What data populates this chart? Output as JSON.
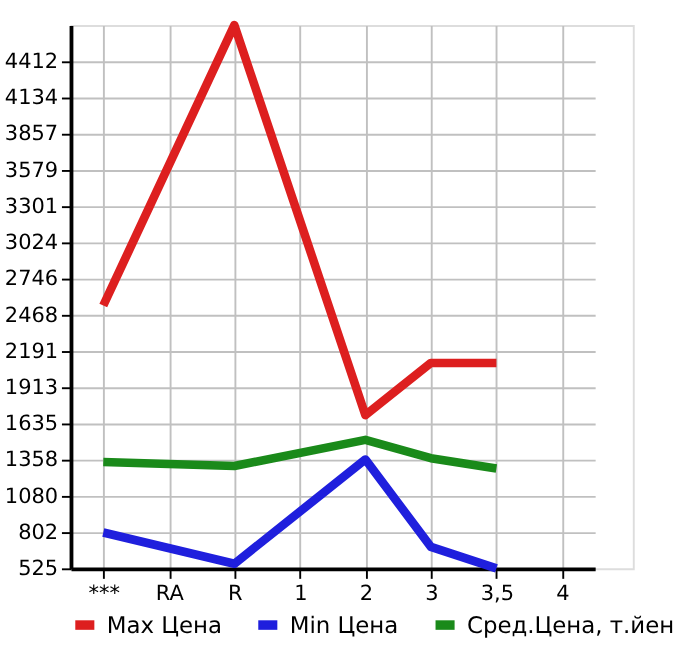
{
  "chart_data": {
    "type": "line",
    "categories": [
      "***",
      "RA",
      "R",
      "1",
      "2",
      "3",
      "3,5",
      "4"
    ],
    "series": [
      {
        "name": "Max Цена",
        "color": "#dd1f1f",
        "values": [
          2540,
          null,
          4690,
          null,
          1700,
          2100,
          2100,
          null
        ]
      },
      {
        "name": "Min Цена",
        "color": "#1f1fdd",
        "values": [
          800,
          null,
          560,
          null,
          1360,
          690,
          525,
          null
        ]
      },
      {
        "name": "Сред.Цена, т.йен",
        "color": "#1a8a1a",
        "values": [
          1340,
          null,
          1310,
          null,
          1510,
          1370,
          1290,
          null
        ]
      }
    ],
    "ylim": [
      525,
      4690
    ],
    "yticks": [
      525,
      802,
      1080,
      1358,
      1635,
      1913,
      2191,
      2468,
      2746,
      3024,
      3301,
      3579,
      3857,
      4134,
      4412
    ],
    "grid": true,
    "legend": "bottom",
    "marker": "none",
    "line_style": "solid"
  }
}
